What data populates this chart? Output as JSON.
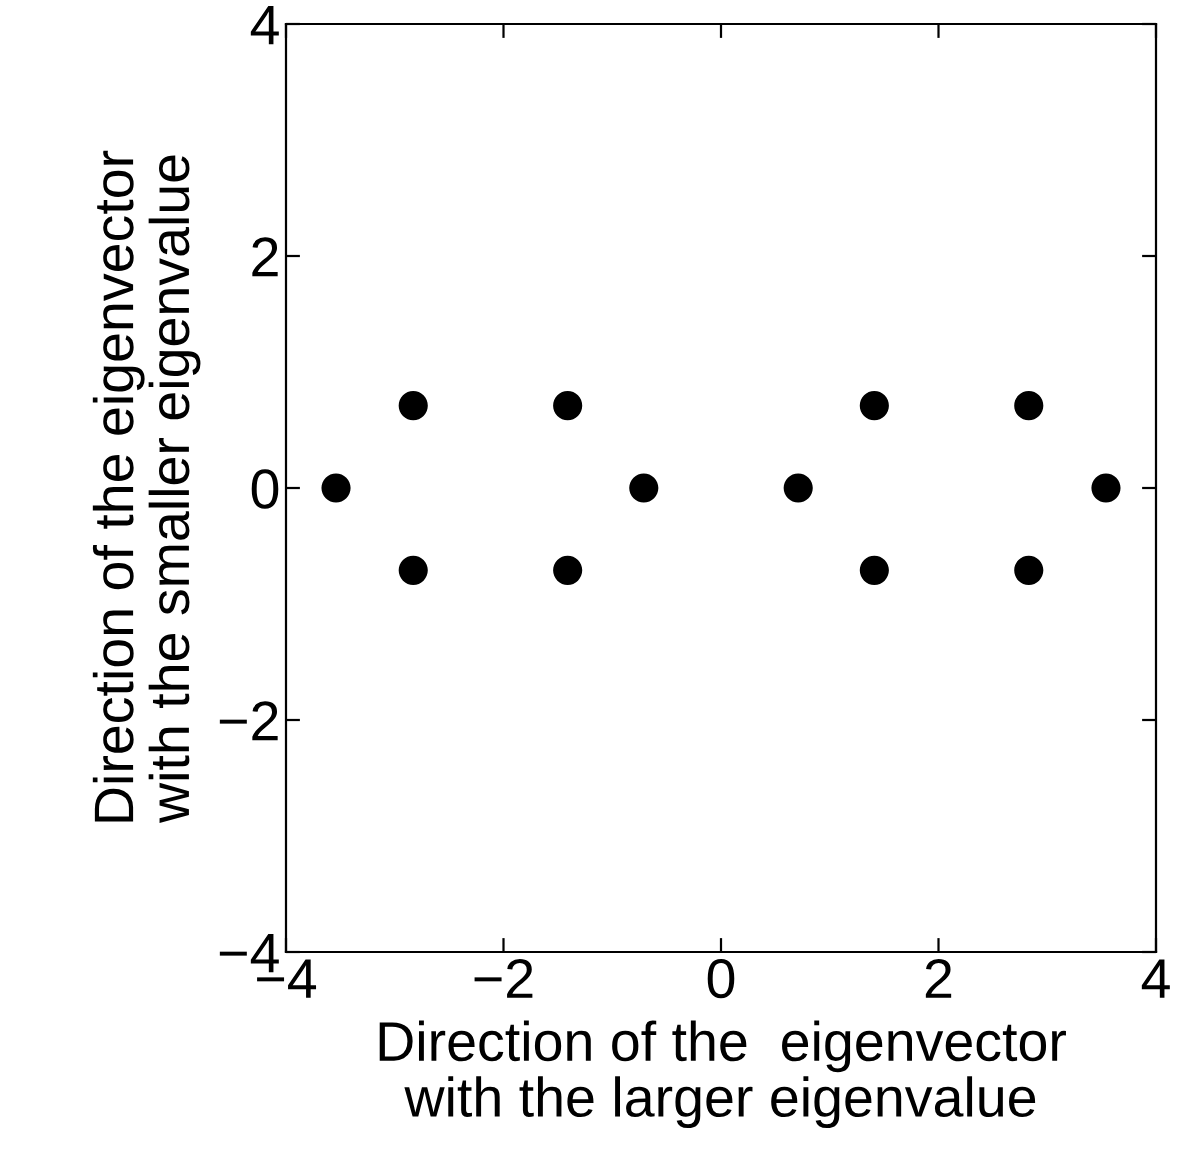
{
  "chart_data": {
    "type": "scatter",
    "xlabel": "Direction of the  eigenvector\nwith the larger eigenvalue",
    "ylabel": "Direction of the eigenvector\nwith the smaller eigenvalue",
    "x": [
      -3.54,
      -2.83,
      -2.83,
      -1.41,
      -1.41,
      -0.71,
      0.71,
      1.41,
      1.41,
      2.83,
      2.83,
      3.54
    ],
    "values": [
      0,
      0.71,
      -0.71,
      0.71,
      -0.71,
      0,
      0,
      0.71,
      -0.71,
      0.71,
      -0.71,
      0
    ],
    "color": "#000000",
    "marker": "circle",
    "xlim": [
      -4,
      4
    ],
    "ylim": [
      -4,
      4
    ],
    "xticks": [
      {
        "value": -4,
        "label": "−4"
      },
      {
        "value": -2,
        "label": "−2"
      },
      0,
      2,
      4
    ],
    "yticks": [
      {
        "value": -4,
        "label": "−4"
      },
      {
        "value": -2,
        "label": "−2"
      },
      0,
      2,
      4
    ],
    "grid": false,
    "legend": false
  }
}
